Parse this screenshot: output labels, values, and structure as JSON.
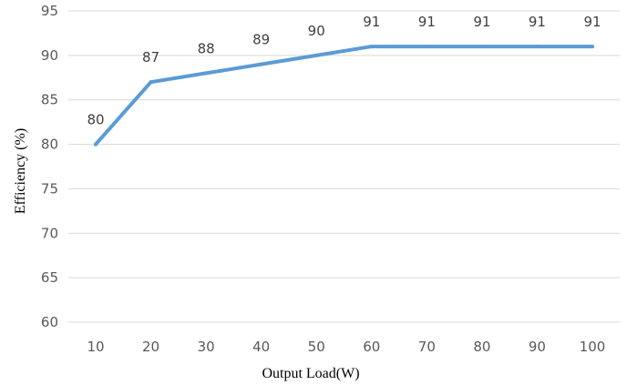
{
  "chart_data": {
    "type": "line",
    "x": [
      10,
      20,
      30,
      40,
      50,
      60,
      70,
      80,
      90,
      100
    ],
    "series": [
      {
        "values": [
          80,
          87,
          88,
          89,
          90,
          91,
          91,
          91,
          91,
          91
        ],
        "color": "#5b9bd5"
      }
    ],
    "data_labels": [
      "80",
      "87",
      "88",
      "89",
      "90",
      "91",
      "91",
      "91",
      "91",
      "91"
    ],
    "x_tick_labels": [
      "10",
      "20",
      "30",
      "40",
      "50",
      "60",
      "70",
      "80",
      "90",
      "100"
    ],
    "y_tick_labels": [
      "60",
      "65",
      "70",
      "75",
      "80",
      "85",
      "90",
      "95"
    ],
    "ylim": [
      60,
      95
    ],
    "y_ticks": [
      60,
      65,
      70,
      75,
      80,
      85,
      90,
      95
    ],
    "xlabel": "Output Load(W)",
    "ylabel": "Efficiency (%)",
    "grid": true,
    "legend": false
  }
}
